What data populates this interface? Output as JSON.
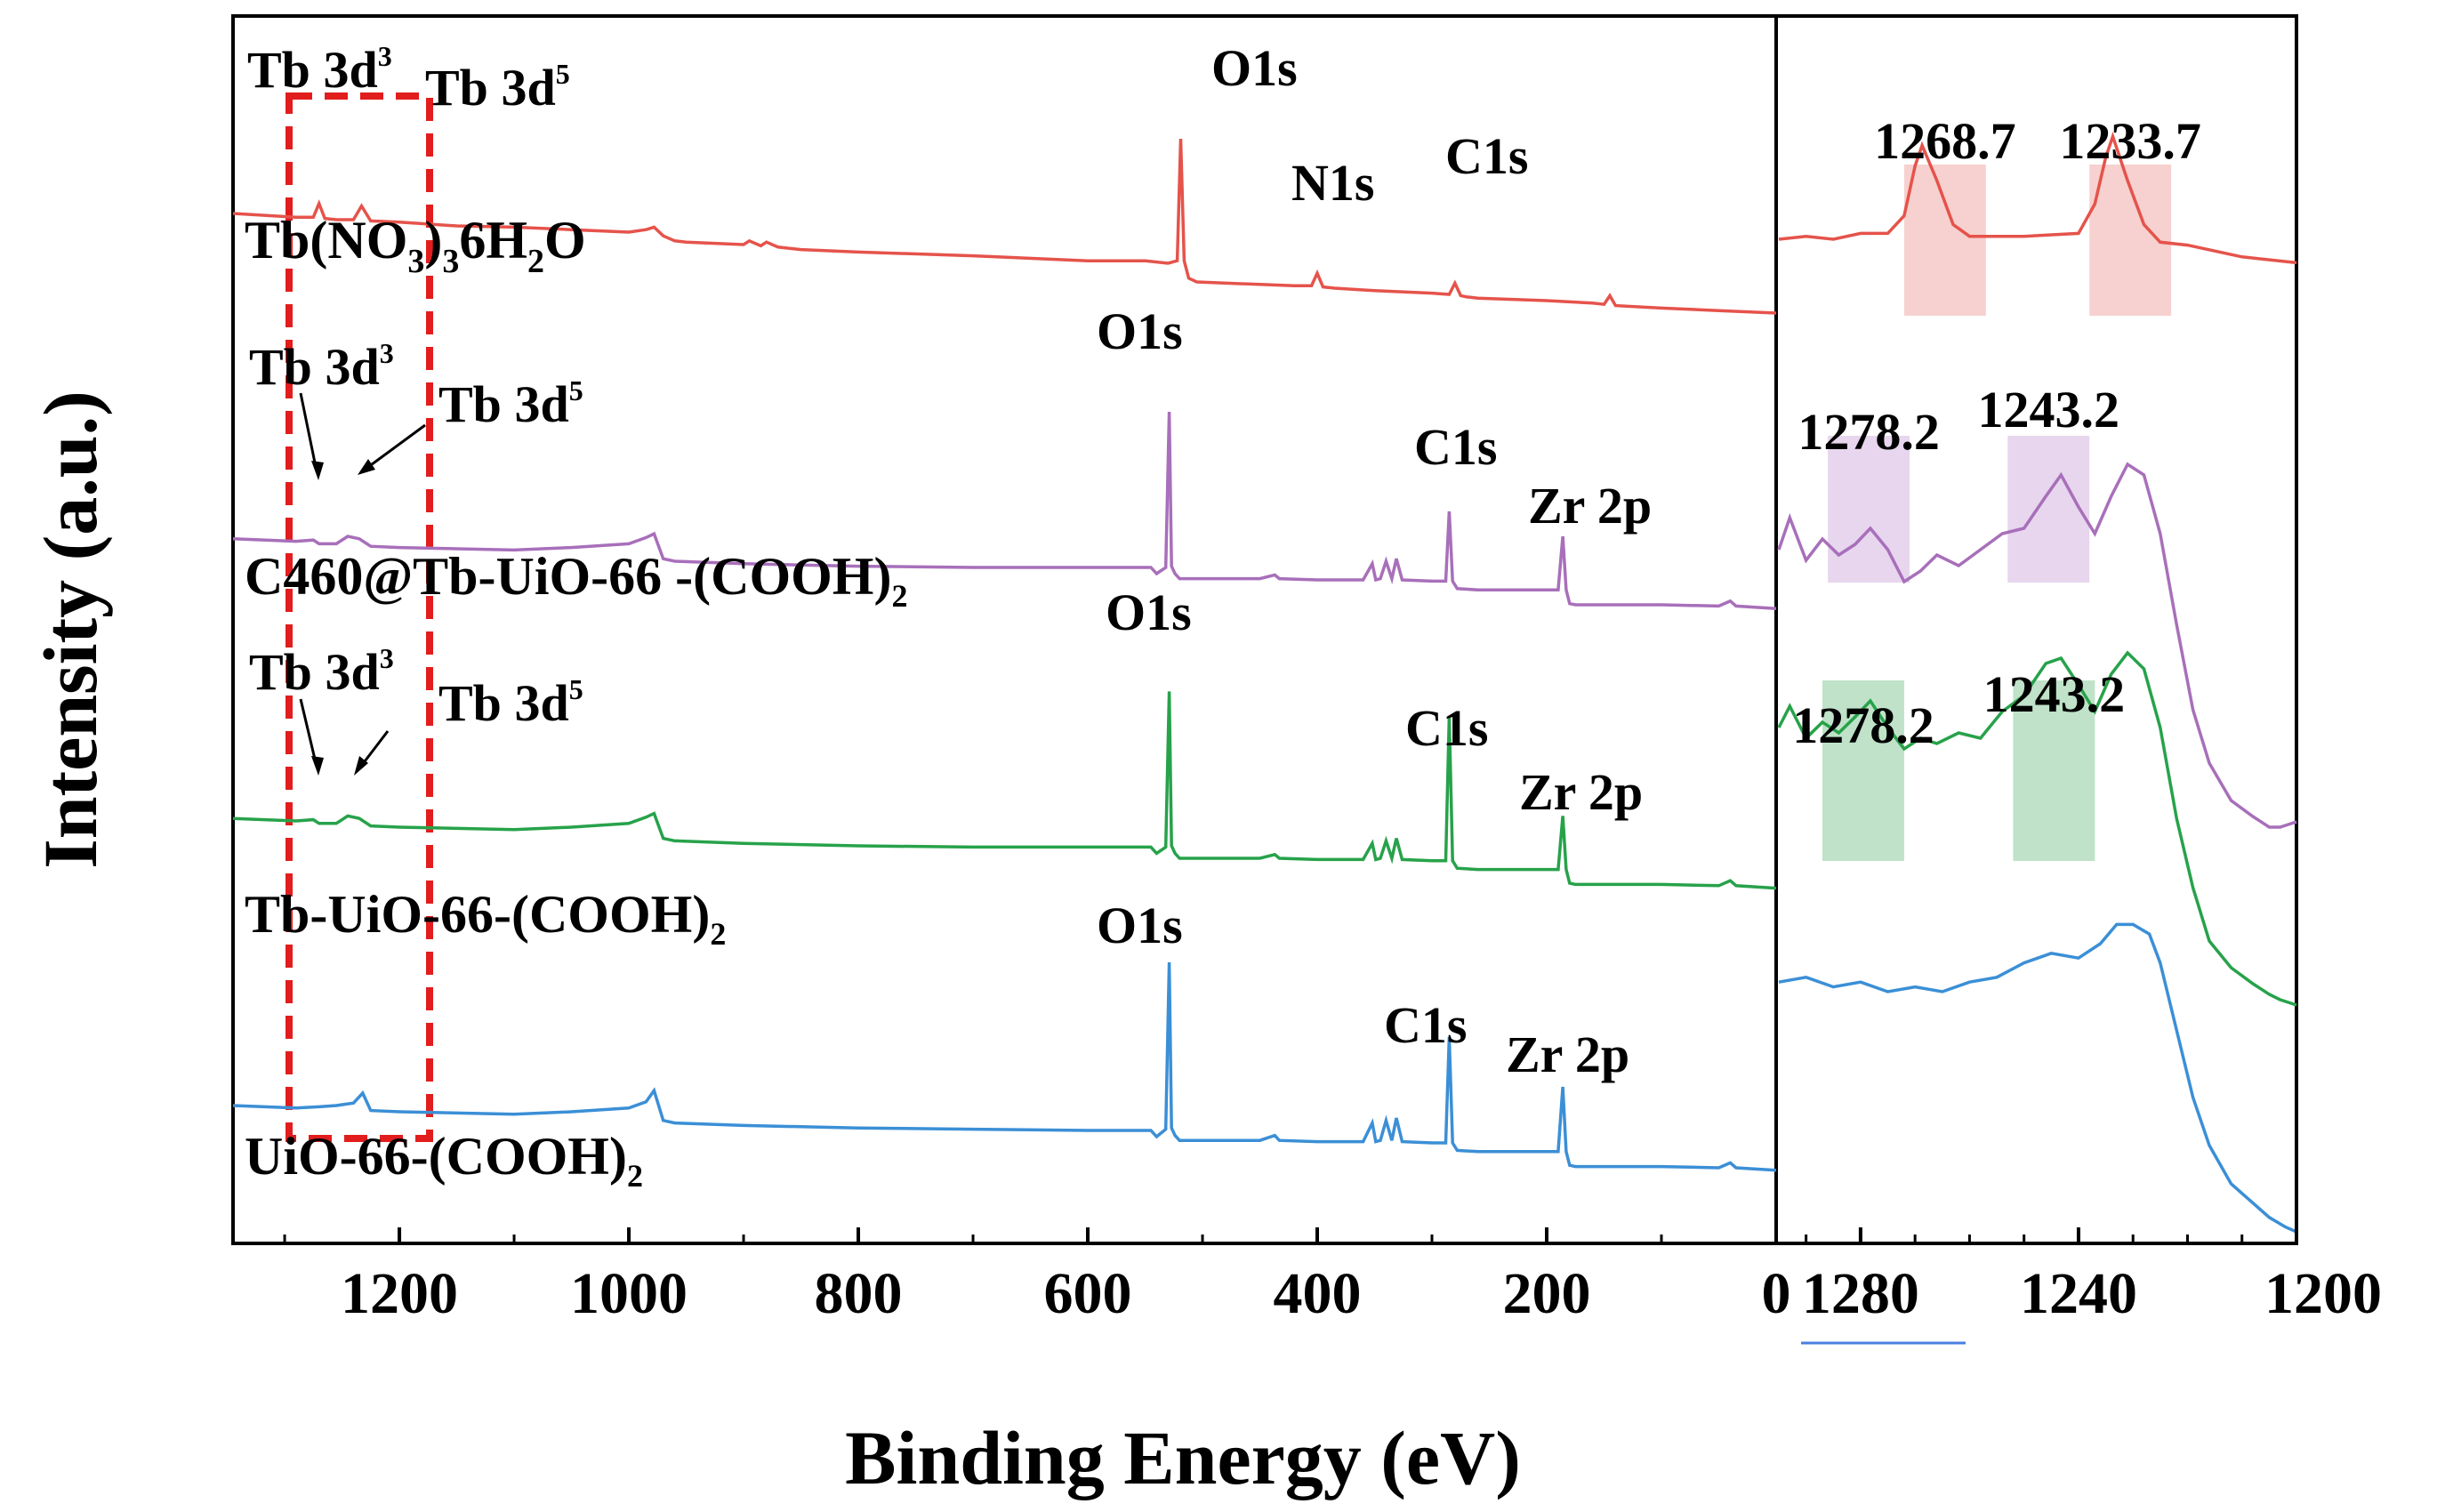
{
  "chart_data": [
    {
      "type": "line",
      "title": "",
      "xlabel": "Binding Energy (eV)",
      "ylabel": "Intensity (a.u.)",
      "xlim": [
        1345,
        0
      ],
      "x_reversed": true,
      "xticks": [
        "1200",
        "1000",
        "800",
        "600",
        "400",
        "200",
        "0"
      ],
      "grid": false,
      "series": [
        {
          "name": "Tb(NO3)36H2O",
          "label_main": "Tb(NO",
          "label_sub1": "3",
          "label_mid": ")",
          "label_sub2": "3",
          "label_mid2": "6H",
          "label_sub3": "2",
          "label_tail": "O",
          "color": "#e5534b",
          "x": [
            1345,
            1290,
            1275,
            1270,
            1265,
            1255,
            1240,
            1233,
            1225,
            1200,
            1150,
            1100,
            1050,
            1000,
            985,
            978,
            970,
            960,
            950,
            900,
            895,
            885,
            880,
            870,
            850,
            800,
            700,
            600,
            550,
            530,
            522,
            519,
            516,
            512,
            505,
            450,
            420,
            405,
            400,
            395,
            385,
            350,
            300,
            285,
            280,
            275,
            270,
            260,
            200,
            160,
            150,
            145,
            140,
            100,
            50,
            0
          ],
          "y": [
            1.0,
            0.97,
            0.97,
            1.08,
            0.96,
            0.95,
            0.95,
            1.06,
            0.94,
            0.93,
            0.9,
            0.89,
            0.87,
            0.85,
            0.87,
            0.89,
            0.82,
            0.78,
            0.77,
            0.75,
            0.78,
            0.74,
            0.77,
            0.73,
            0.71,
            0.69,
            0.66,
            0.62,
            0.62,
            0.6,
            0.62,
            1.6,
            0.62,
            0.48,
            0.45,
            0.43,
            0.42,
            0.42,
            0.52,
            0.41,
            0.4,
            0.38,
            0.36,
            0.35,
            0.44,
            0.34,
            0.33,
            0.32,
            0.3,
            0.28,
            0.27,
            0.34,
            0.26,
            0.24,
            0.22,
            0.2
          ]
        },
        {
          "name": "C460@Tb-UiO-66-(COOH)2",
          "label_main": "C460@Tb-UiO-66 -(COOH)",
          "label_sub1": "2",
          "color": "#a86fba",
          "x": [
            1345,
            1290,
            1275,
            1270,
            1255,
            1245,
            1235,
            1225,
            1200,
            1100,
            1050,
            1000,
            985,
            978,
            970,
            960,
            900,
            800,
            700,
            600,
            545,
            540,
            532,
            529,
            527,
            524,
            520,
            450,
            437,
            433,
            400,
            360,
            352,
            349,
            345,
            340,
            335,
            331,
            326,
            300,
            288,
            285,
            282,
            278,
            260,
            200,
            190,
            186,
            183,
            180,
            175,
            100,
            50,
            40,
            35,
            0
          ],
          "y": [
            0.78,
            0.76,
            0.77,
            0.74,
            0.74,
            0.8,
            0.78,
            0.72,
            0.71,
            0.69,
            0.71,
            0.74,
            0.79,
            0.82,
            0.62,
            0.6,
            0.58,
            0.56,
            0.55,
            0.55,
            0.55,
            0.5,
            0.55,
            1.8,
            0.56,
            0.5,
            0.46,
            0.46,
            0.49,
            0.46,
            0.45,
            0.45,
            0.58,
            0.45,
            0.46,
            0.6,
            0.46,
            0.62,
            0.45,
            0.44,
            0.44,
            1.0,
            0.44,
            0.38,
            0.37,
            0.37,
            0.37,
            0.8,
            0.37,
            0.26,
            0.25,
            0.25,
            0.24,
            0.28,
            0.24,
            0.22
          ]
        },
        {
          "name": "Tb-UiO-66-(COOH)2",
          "label_main": "Tb-UiO-66-(COOH)",
          "label_sub1": "2",
          "color": "#27a24a",
          "x": [
            1345,
            1290,
            1275,
            1270,
            1255,
            1245,
            1235,
            1225,
            1200,
            1100,
            1050,
            1000,
            985,
            978,
            970,
            960,
            900,
            800,
            700,
            600,
            545,
            540,
            532,
            529,
            527,
            524,
            520,
            450,
            437,
            433,
            400,
            360,
            352,
            349,
            345,
            340,
            335,
            331,
            326,
            300,
            288,
            285,
            282,
            278,
            260,
            200,
            190,
            186,
            183,
            180,
            175,
            100,
            50,
            40,
            35,
            0
          ],
          "y": [
            0.82,
            0.8,
            0.81,
            0.78,
            0.78,
            0.84,
            0.82,
            0.76,
            0.75,
            0.73,
            0.75,
            0.78,
            0.83,
            0.86,
            0.66,
            0.64,
            0.62,
            0.6,
            0.59,
            0.59,
            0.59,
            0.54,
            0.59,
            1.84,
            0.6,
            0.54,
            0.5,
            0.5,
            0.53,
            0.5,
            0.49,
            0.49,
            0.62,
            0.49,
            0.5,
            0.64,
            0.5,
            0.66,
            0.49,
            0.48,
            0.48,
            1.64,
            0.48,
            0.42,
            0.41,
            0.41,
            0.41,
            0.84,
            0.41,
            0.3,
            0.29,
            0.29,
            0.28,
            0.32,
            0.28,
            0.26
          ]
        },
        {
          "name": "UiO-66-(COOH)2",
          "label_main": "UiO-66-(COOH)",
          "label_sub1": "2",
          "color": "#3b8fd6",
          "x": [
            1345,
            1290,
            1270,
            1255,
            1240,
            1232,
            1225,
            1200,
            1100,
            1050,
            1000,
            985,
            978,
            970,
            960,
            900,
            800,
            700,
            600,
            545,
            540,
            532,
            529,
            527,
            524,
            520,
            450,
            437,
            433,
            400,
            360,
            352,
            349,
            345,
            340,
            335,
            331,
            326,
            300,
            288,
            285,
            282,
            278,
            260,
            200,
            190,
            186,
            183,
            180,
            175,
            100,
            50,
            40,
            35,
            0
          ],
          "y": [
            0.8,
            0.78,
            0.79,
            0.8,
            0.82,
            0.9,
            0.76,
            0.75,
            0.73,
            0.75,
            0.78,
            0.83,
            0.92,
            0.68,
            0.66,
            0.64,
            0.62,
            0.61,
            0.6,
            0.6,
            0.55,
            0.61,
            1.95,
            0.62,
            0.56,
            0.52,
            0.52,
            0.56,
            0.52,
            0.51,
            0.51,
            0.66,
            0.51,
            0.52,
            0.68,
            0.52,
            0.7,
            0.51,
            0.5,
            0.5,
            1.35,
            0.5,
            0.44,
            0.43,
            0.43,
            0.43,
            0.95,
            0.43,
            0.32,
            0.31,
            0.31,
            0.3,
            0.34,
            0.3,
            0.28
          ]
        }
      ],
      "annotations": {
        "O1s": "O1s",
        "N1s": "N1s",
        "C1s": "C1s",
        "Zr2p": "Zr 2p",
        "Tb3d3": "Tb 3d",
        "Tb3d3_sup": "3",
        "Tb3d5": "Tb 3d",
        "Tb3d5_sup": "5"
      }
    },
    {
      "type": "line",
      "title": "",
      "xlim": [
        1295,
        1200
      ],
      "x_reversed": true,
      "xticks": [
        "1280",
        "1240",
        "1200"
      ],
      "grid": false,
      "series": [
        {
          "name": "Tb(NO3)36H2O",
          "color": "#e5534b",
          "x": [
            1295,
            1290,
            1285,
            1280,
            1275,
            1272,
            1270,
            1268.7,
            1266,
            1263,
            1260,
            1250,
            1240,
            1237,
            1235,
            1233.7,
            1231,
            1228,
            1225,
            1220,
            1210,
            1205,
            1200
          ],
          "y": [
            0.2,
            0.21,
            0.2,
            0.22,
            0.22,
            0.28,
            0.45,
            0.52,
            0.4,
            0.25,
            0.21,
            0.21,
            0.22,
            0.32,
            0.48,
            0.55,
            0.4,
            0.25,
            0.19,
            0.18,
            0.14,
            0.13,
            0.12
          ]
        },
        {
          "name": "C460@Tb-UiO-66-(COOH)2",
          "color": "#a86fba",
          "x": [
            1295,
            1293,
            1290,
            1287,
            1284,
            1281,
            1278.2,
            1275,
            1272,
            1269,
            1266,
            1262,
            1258,
            1254,
            1250,
            1246,
            1243.2,
            1240,
            1237,
            1234,
            1231,
            1228,
            1225,
            1222,
            1219,
            1216,
            1212,
            1208,
            1205,
            1203,
            1200
          ],
          "y": [
            0.52,
            0.58,
            0.5,
            0.54,
            0.51,
            0.53,
            0.56,
            0.52,
            0.46,
            0.48,
            0.51,
            0.49,
            0.52,
            0.55,
            0.56,
            0.62,
            0.66,
            0.6,
            0.55,
            0.62,
            0.68,
            0.66,
            0.55,
            0.38,
            0.22,
            0.12,
            0.05,
            0.02,
            0.0,
            0.0,
            0.01
          ]
        },
        {
          "name": "Tb-UiO-66-(COOH)2",
          "color": "#27a24a",
          "x": [
            1295,
            1293,
            1290,
            1287,
            1284,
            1281,
            1278.2,
            1275,
            1272,
            1269,
            1266,
            1262,
            1258,
            1254,
            1250,
            1246,
            1243.2,
            1240,
            1237,
            1234,
            1231,
            1228,
            1225,
            1222,
            1219,
            1216,
            1212,
            1208,
            1205,
            1203,
            1200
          ],
          "y": [
            0.52,
            0.56,
            0.5,
            0.53,
            0.51,
            0.54,
            0.57,
            0.52,
            0.48,
            0.5,
            0.49,
            0.51,
            0.5,
            0.55,
            0.58,
            0.64,
            0.65,
            0.6,
            0.55,
            0.62,
            0.66,
            0.63,
            0.52,
            0.35,
            0.22,
            0.12,
            0.07,
            0.04,
            0.02,
            0.01,
            0.0
          ]
        },
        {
          "name": "UiO-66-(COOH)2",
          "color": "#3b8fd6",
          "x": [
            1295,
            1290,
            1285,
            1280,
            1275,
            1270,
            1265,
            1260,
            1255,
            1250,
            1245,
            1240,
            1236,
            1233,
            1230,
            1227,
            1225,
            1222,
            1219,
            1216,
            1212,
            1208,
            1205,
            1202,
            1200
          ],
          "y": [
            0.52,
            0.53,
            0.51,
            0.52,
            0.5,
            0.51,
            0.5,
            0.52,
            0.53,
            0.56,
            0.58,
            0.57,
            0.6,
            0.64,
            0.64,
            0.62,
            0.56,
            0.42,
            0.28,
            0.18,
            0.1,
            0.06,
            0.03,
            0.01,
            0.0
          ]
        }
      ],
      "peak_labels": [
        {
          "text": "1268.7",
          "series": 0,
          "band": [
            1272,
            1257
          ]
        },
        {
          "text": "1233.7",
          "series": 0,
          "band": [
            1238,
            1223
          ]
        },
        {
          "text": "1278.2",
          "series": 1,
          "band": [
            1286,
            1271
          ]
        },
        {
          "text": "1243.2",
          "series": 1,
          "band": [
            1253,
            1238
          ]
        },
        {
          "text": "1278.2",
          "series": 2,
          "band": [
            1287,
            1272
          ]
        },
        {
          "text": "1243.2",
          "series": 2,
          "band": [
            1252,
            1237
          ]
        }
      ]
    }
  ]
}
